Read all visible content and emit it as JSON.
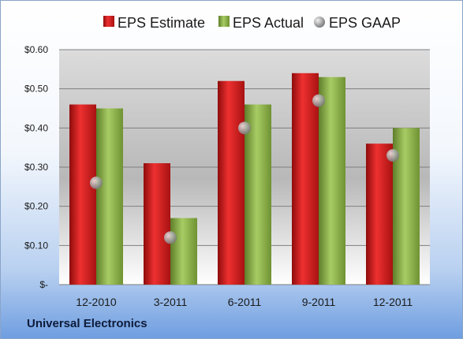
{
  "company": "Universal Electronics",
  "chart_data": {
    "type": "bar",
    "categories": [
      "12-2010",
      "3-2011",
      "6-2011",
      "9-2011",
      "12-2011"
    ],
    "series": [
      {
        "name": "EPS Estimate",
        "kind": "bar",
        "color": "#d42020",
        "values": [
          0.46,
          0.31,
          0.52,
          0.54,
          0.36
        ]
      },
      {
        "name": "EPS Actual",
        "kind": "bar",
        "color": "#8ab046",
        "values": [
          0.45,
          0.17,
          0.46,
          0.53,
          0.4
        ]
      },
      {
        "name": "EPS GAAP",
        "kind": "marker",
        "color": "#a8a8a8",
        "values": [
          0.26,
          0.12,
          0.4,
          0.47,
          0.33
        ]
      }
    ],
    "y_ticks": [
      {
        "value": 0,
        "label": "$-"
      },
      {
        "value": 0.1,
        "label": "$0.10"
      },
      {
        "value": 0.2,
        "label": "$0.20"
      },
      {
        "value": 0.3,
        "label": "$0.30"
      },
      {
        "value": 0.4,
        "label": "$0.40"
      },
      {
        "value": 0.5,
        "label": "$0.50"
      },
      {
        "value": 0.6,
        "label": "$0.60"
      }
    ],
    "ylim": [
      0,
      0.6
    ],
    "grid": true,
    "legend_position": "top"
  }
}
